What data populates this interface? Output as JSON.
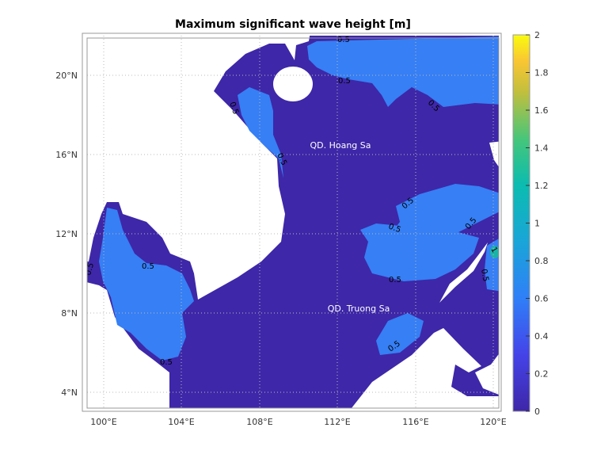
{
  "title": "Maximum significant wave height [m]",
  "colors": {
    "sea_low": "#3e27a8",
    "sea_mid": "#367ff5",
    "high_spot": "#1bb3a8",
    "land": "#ffffff"
  },
  "x_ticks": [
    "100°E",
    "104°E",
    "108°E",
    "112°E",
    "116°E",
    "120°E"
  ],
  "y_ticks": [
    "20°N",
    "16°N",
    "12°N",
    "8°N",
    "4°N"
  ],
  "colorbar": {
    "min": 0,
    "max": 2,
    "ticks": [
      "0",
      "0.2",
      "0.4",
      "0.6",
      "0.8",
      "1",
      "1.2",
      "1.4",
      "1.6",
      "1.8",
      "2"
    ],
    "colormap": "parula"
  },
  "annotations": {
    "hoang_sa": "QD. Hoang Sa",
    "truong_sa": "QD. Truong Sa"
  },
  "contour_labels": [
    "0.5",
    "0.5",
    "0.5",
    "0.5",
    "0.5",
    "0.5",
    "0.5",
    "0.5",
    "0.5",
    "0.5",
    "0.5",
    "0.5",
    "0.5",
    "0.5",
    "1"
  ]
}
